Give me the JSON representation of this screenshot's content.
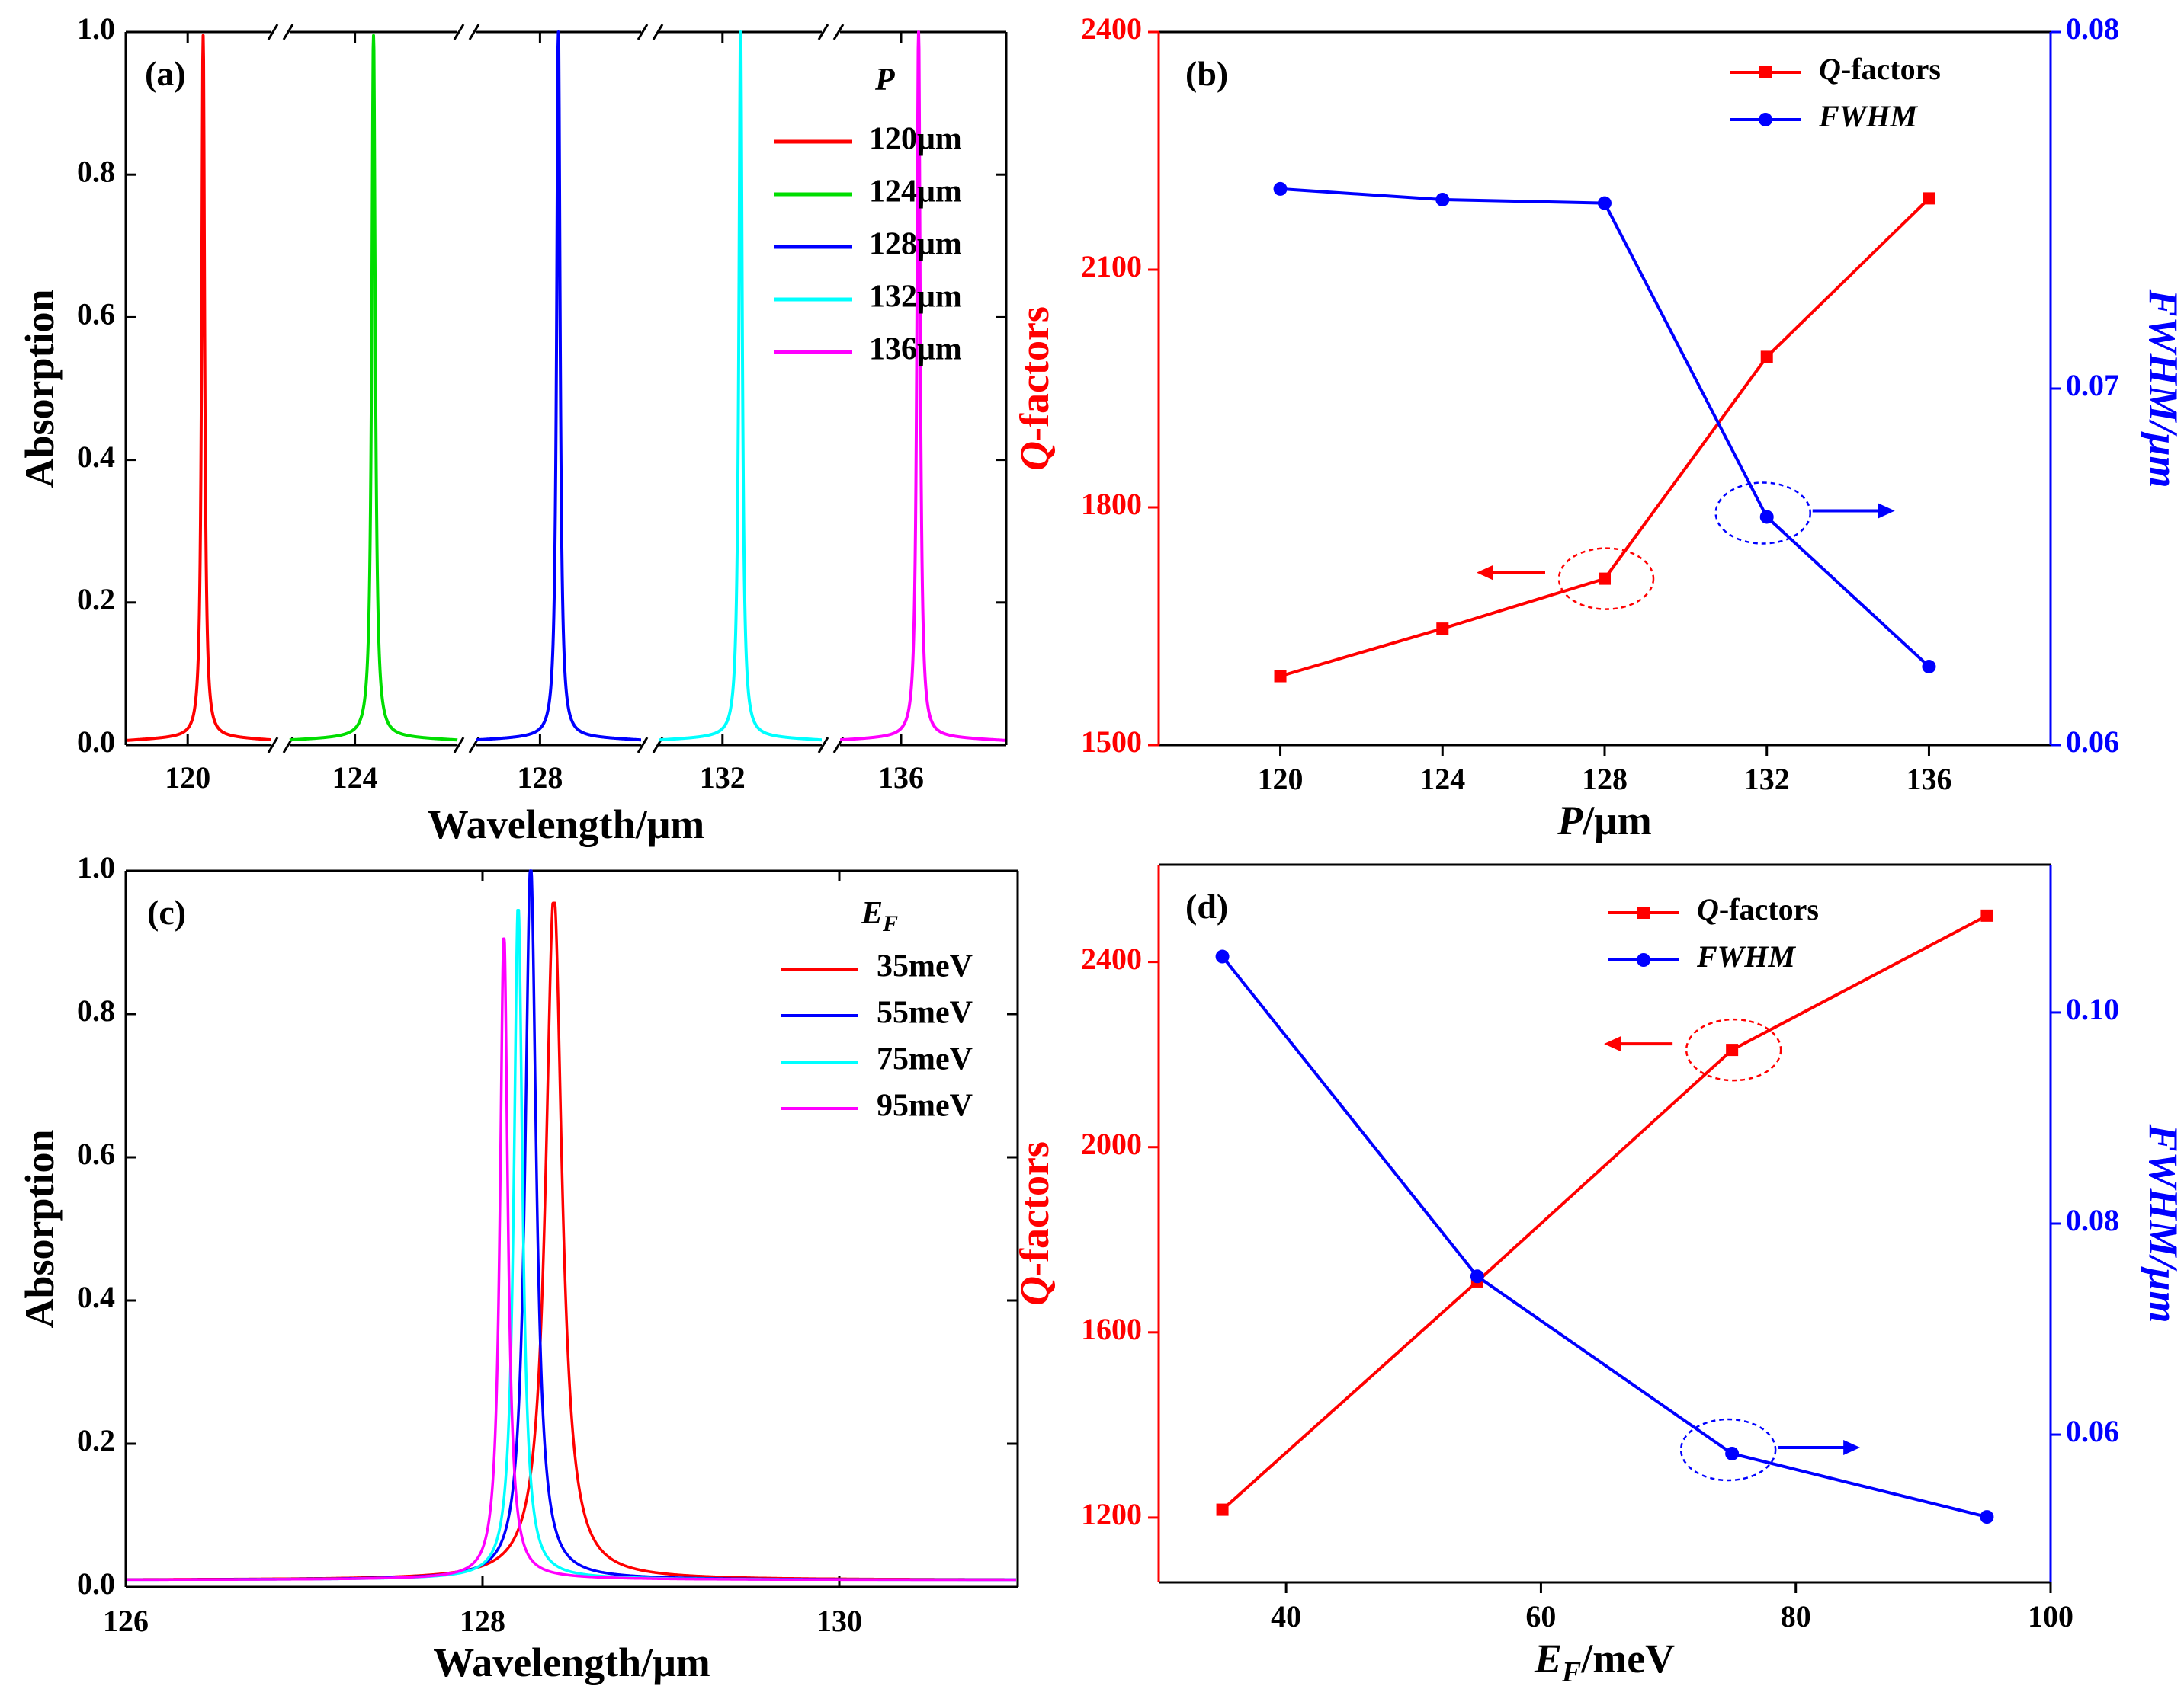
{
  "chart_data": [
    {
      "panel": "(a)",
      "type": "line",
      "xlabel": "Wavelength/μm",
      "ylabel": "Absorption",
      "ylim": [
        0,
        1.0
      ],
      "yticks": [
        "0.0",
        "0.2",
        "0.4",
        "0.6",
        "0.8",
        "1.0"
      ],
      "xticks": [
        "120",
        "124",
        "128",
        "132",
        "136"
      ],
      "axis_break": true,
      "legend_title": "P",
      "legend_position": "top-right",
      "colors": [
        "#ff0000",
        "#00dd00",
        "#0000ff",
        "#00ffff",
        "#ff00ff"
      ],
      "series": [
        {
          "name": "120μm",
          "peak_wavelength": 120.4,
          "peak_absorption": 0.995,
          "baseline": 0.012
        },
        {
          "name": "124μm",
          "peak_wavelength": 124.4,
          "peak_absorption": 0.995,
          "baseline": 0.012
        },
        {
          "name": "128μm",
          "peak_wavelength": 128.4,
          "peak_absorption": 1.0,
          "baseline": 0.012
        },
        {
          "name": "132μm",
          "peak_wavelength": 132.4,
          "peak_absorption": 1.0,
          "baseline": 0.012
        },
        {
          "name": "136μm",
          "peak_wavelength": 136.4,
          "peak_absorption": 1.0,
          "baseline": 0.012
        }
      ]
    },
    {
      "panel": "(b)",
      "type": "line",
      "xlabel_italic": "P",
      "xlabel_rest": "/μm",
      "ylabel_left_italic": "Q",
      "ylabel_left_rest": "-factors",
      "ylabel_right": "FWHM/μm",
      "x": [
        120,
        124,
        128,
        132,
        136
      ],
      "xlim": [
        117,
        139
      ],
      "xticks": [
        "120",
        "124",
        "128",
        "132",
        "136"
      ],
      "ylim_left": [
        1500,
        2400
      ],
      "yticks_left": [
        "1500",
        "1800",
        "2100",
        "2400"
      ],
      "ylim_right": [
        0.06,
        0.08
      ],
      "yticks_right": [
        "0.06",
        "0.07",
        "0.08"
      ],
      "legend_position": "top-right",
      "series": [
        {
          "name_italic": "Q",
          "name_rest": "-factors",
          "axis": "left",
          "color": "#ff0000",
          "marker": "square",
          "values": [
            1587,
            1647,
            1710,
            1990,
            2190
          ]
        },
        {
          "name_italic": "FWHM",
          "name_rest": "",
          "axis": "right",
          "color": "#0000ff",
          "marker": "circle",
          "values": [
            0.0756,
            0.0753,
            0.0752,
            0.0664,
            0.0622
          ]
        }
      ]
    },
    {
      "panel": "(c)",
      "type": "line",
      "xlabel": "Wavelength/μm",
      "ylabel": "Absorption",
      "xlim": [
        126,
        131
      ],
      "xticks": [
        "126",
        "128",
        "130"
      ],
      "ylim": [
        0,
        1.0
      ],
      "yticks": [
        "0.0",
        "0.2",
        "0.4",
        "0.6",
        "0.8",
        "1.0"
      ],
      "legend_title_main": "E",
      "legend_title_sub": "F",
      "legend_position": "top-right",
      "series": [
        {
          "name": "35meV",
          "color": "#ff0000",
          "peak_wavelength": 128.4,
          "peak_absorption": 0.955,
          "fwhm": 0.11
        },
        {
          "name": "55meV",
          "color": "#0000ff",
          "peak_wavelength": 128.27,
          "peak_absorption": 1.0,
          "fwhm": 0.075
        },
        {
          "name": "75meV",
          "color": "#00ffff",
          "peak_wavelength": 128.2,
          "peak_absorption": 0.945,
          "fwhm": 0.058
        },
        {
          "name": "95meV",
          "color": "#ff00ff",
          "peak_wavelength": 128.12,
          "peak_absorption": 0.905,
          "fwhm": 0.052
        }
      ]
    },
    {
      "panel": "(d)",
      "type": "line",
      "xlabel_main": "E",
      "xlabel_sub": "F",
      "xlabel_rest": "/meV",
      "ylabel_left_italic": "Q",
      "ylabel_left_rest": "-factors",
      "ylabel_right": "FWHM/μm",
      "x": [
        35,
        55,
        75,
        95
      ],
      "xlim": [
        30,
        100
      ],
      "xticks": [
        "40",
        "60",
        "80",
        "100"
      ],
      "ylim_left": [
        1060,
        2610
      ],
      "yticks_left": [
        "1200",
        "1600",
        "2000",
        "2400"
      ],
      "ylim_right": [
        0.046,
        0.114
      ],
      "yticks_right": [
        "0.06",
        "0.08",
        "0.10"
      ],
      "legend_position": "top-right",
      "series": [
        {
          "name_italic": "Q",
          "name_rest": "-factors",
          "axis": "left",
          "color": "#ff0000",
          "marker": "square",
          "values": [
            1217,
            1710,
            2210,
            2500
          ]
        },
        {
          "name_italic": "FWHM",
          "name_rest": "",
          "axis": "right",
          "color": "#0000ff",
          "marker": "circle",
          "values": [
            0.1053,
            0.075,
            0.0582,
            0.0522
          ]
        }
      ]
    }
  ]
}
